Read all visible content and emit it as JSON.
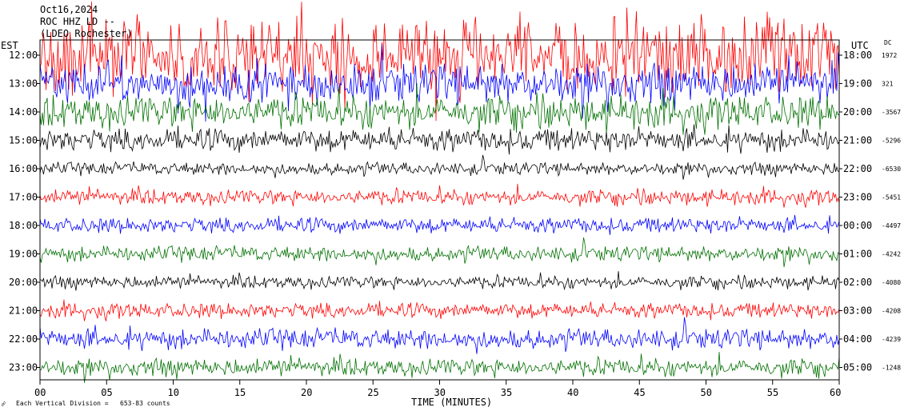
{
  "header": {
    "date": "Oct16,2024",
    "station": "ROC HHZ LD --",
    "location": "(LDEO Rochester)"
  },
  "left_axis_title": "EST",
  "right_axis_title": "UTC",
  "dc_title": "DC",
  "footer": {
    "xlabel": "TIME (MINUTES)",
    "scale_note": "Each Vertical Division = ",
    "scale_value": "653-83 counts"
  },
  "colors": {
    "trace_cycle": [
      "#000000",
      "#ff0000",
      "#0000ff",
      "#007000"
    ],
    "frame": "#000000"
  },
  "chart_data": {
    "type": "line",
    "title": "",
    "xlabel": "TIME (MINUTES)",
    "ylabel": "EST",
    "xlim": [
      0,
      60
    ],
    "x_ticks": [
      "00",
      "05",
      "10",
      "15",
      "20",
      "25",
      "30",
      "35",
      "40",
      "45",
      "50",
      "55",
      "60"
    ],
    "rows": [
      {
        "est": "12:00",
        "utc": "18:00",
        "dc": "1972",
        "color": "red",
        "amplitude": 3.0
      },
      {
        "est": "13:00",
        "utc": "19:00",
        "dc": "321",
        "color": "blue",
        "amplitude": 1.6
      },
      {
        "est": "14:00",
        "utc": "20:00",
        "dc": "-3567",
        "color": "green",
        "amplitude": 1.3
      },
      {
        "est": "15:00",
        "utc": "21:00",
        "dc": "-5296",
        "color": "black",
        "amplitude": 0.9
      },
      {
        "est": "16:00",
        "utc": "22:00",
        "dc": "-6530",
        "color": "black",
        "amplitude": 0.5
      },
      {
        "est": "17:00",
        "utc": "23:00",
        "dc": "-5451",
        "color": "red",
        "amplitude": 0.6
      },
      {
        "est": "18:00",
        "utc": "00:00",
        "dc": "-4497",
        "color": "blue",
        "amplitude": 0.6
      },
      {
        "est": "19:00",
        "utc": "01:00",
        "dc": "-4242",
        "color": "green",
        "amplitude": 0.6
      },
      {
        "est": "20:00",
        "utc": "02:00",
        "dc": "-4080",
        "color": "black",
        "amplitude": 0.5
      },
      {
        "est": "21:00",
        "utc": "03:00",
        "dc": "-4208",
        "color": "red",
        "amplitude": 0.6
      },
      {
        "est": "22:00",
        "utc": "04:00",
        "dc": "-4239",
        "color": "blue",
        "amplitude": 0.8
      },
      {
        "est": "23:00",
        "utc": "05:00",
        "dc": "-1248",
        "color": "green",
        "amplitude": 0.7
      }
    ]
  }
}
